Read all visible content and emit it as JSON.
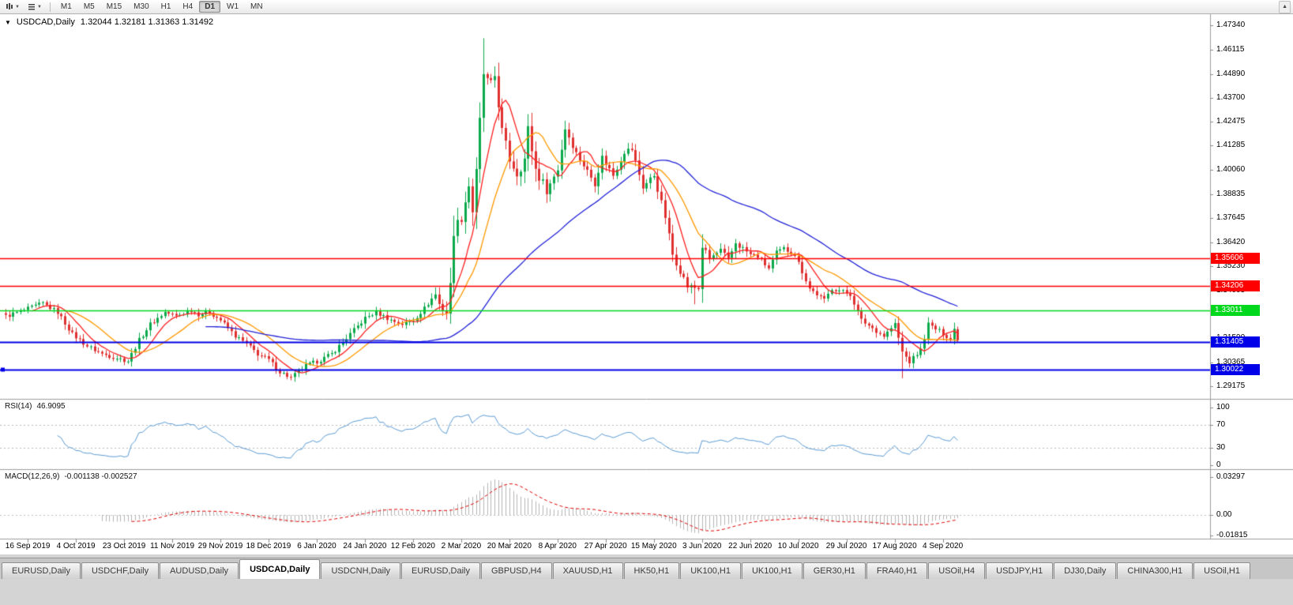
{
  "toolbar": {
    "timeframes": [
      "M1",
      "M5",
      "M15",
      "M30",
      "H1",
      "H4",
      "D1",
      "W1",
      "MN"
    ],
    "active_timeframe": "D1"
  },
  "header": {
    "symbol": "USDCAD,Daily",
    "ohlc_text": "1.32044 1.32181 1.31363 1.31492"
  },
  "colors": {
    "candle_up": "#0ba94c",
    "candle_down": "#e03131",
    "background": "#ffffff",
    "rsi_line": "#5b9bd5",
    "macd_signal": "#e00000",
    "macd_histogram": "#b5b5b5"
  },
  "hlines": [
    {
      "value": 1.35606,
      "label": "1.35606",
      "color": "#ff0000",
      "width": 1.4
    },
    {
      "value": 1.34206,
      "label": "1.34206",
      "color": "#ff0000",
      "width": 1.4
    },
    {
      "value": 1.33011,
      "label": "1.33011",
      "color": "#00d81e",
      "width": 1.6
    },
    {
      "value": 1.31405,
      "label": "1.31405",
      "color": "#0000e8",
      "width": 2
    },
    {
      "value": 1.30022,
      "label": "1.30022",
      "color": "#0000e8",
      "width": 2,
      "handle": true
    }
  ],
  "rsi": {
    "name": "RSI(14)",
    "value": "46.9095",
    "period": 14,
    "color": "#5b9bd5",
    "levels": [
      70,
      30
    ],
    "scale": [
      {
        "label": "100",
        "v": 100
      },
      {
        "label": "70",
        "v": 70
      },
      {
        "label": "30",
        "v": 30
      },
      {
        "label": "0",
        "v": 0
      }
    ]
  },
  "macd": {
    "name": "MACD(12,26,9)",
    "value": "-0.001138 -0.002527",
    "fast": 12,
    "slow": 26,
    "signal": 9,
    "scale": [
      {
        "label": "0.03297",
        "v": 0.03297
      },
      {
        "label": "0.00",
        "v": 0
      },
      {
        "label": "-0.01815",
        "v": -0.01815
      }
    ]
  },
  "tabs": {
    "active_index": 3,
    "items": [
      "EURUSD,Daily",
      "USDCHF,Daily",
      "AUDUSD,Daily",
      "USDCAD,Daily",
      "USDCNH,Daily",
      "EURUSD,Daily",
      "GBPUSD,H4",
      "XAUUSD,H1",
      "HK50,H1",
      "UK100,H1",
      "UK100,H1",
      "GER30,H1",
      "FRA40,H1",
      "USOil,H4",
      "USDJPY,H1",
      "DJ30,Daily",
      "CHINA300,H1",
      "USOil,H1"
    ]
  },
  "chart_data": {
    "type": "candlestick",
    "title": "USDCAD,Daily",
    "symbol": "USDCAD",
    "timeframe": "Daily",
    "last_candle": {
      "open": 1.32044,
      "high": 1.32181,
      "low": 1.31363,
      "close": 1.31492
    },
    "num_candles": 258,
    "y_axis_range": [
      1.2854,
      1.479
    ],
    "y_ticks": [
      "1.47340",
      "1.46115",
      "1.44890",
      "1.43700",
      "1.42475",
      "1.41285",
      "1.40060",
      "1.38835",
      "1.37645",
      "1.36420",
      "1.35230",
      "1.34005",
      "1.32780",
      "1.31590",
      "1.30365",
      "1.29175"
    ],
    "x_labels": [
      "16 Sep 2019",
      "4 Oct 2019",
      "23 Oct 2019",
      "11 Nov 2019",
      "29 Nov 2019",
      "18 Dec 2019",
      "6 Jan 2020",
      "24 Jan 2020",
      "12 Feb 2020",
      "2 Mar 2020",
      "20 Mar 2020",
      "8 Apr 2020",
      "27 Apr 2020",
      "15 May 2020",
      "3 Jun 2020",
      "22 Jun 2020",
      "10 Jul 2020",
      "29 Jul 2020",
      "17 Aug 2020",
      "4 Sep 2020"
    ],
    "extremes": {
      "high": 1.4669,
      "low": 1.2952,
      "low_index": 76,
      "low2": 1.2958,
      "low2_index": 242,
      "low3": 1.333,
      "low3_index": 186
    },
    "moving_averages": [
      {
        "type": "sma",
        "period": 8,
        "color": "#ff2020"
      },
      {
        "type": "sma",
        "period": 17,
        "color": "#ff9900"
      },
      {
        "type": "sma",
        "period": 55,
        "color": "#2222d8"
      }
    ],
    "close_anchors": [
      [
        0,
        1.327
      ],
      [
        5,
        1.33
      ],
      [
        10,
        1.3335
      ],
      [
        14,
        1.329
      ],
      [
        18,
        1.318
      ],
      [
        22,
        1.312
      ],
      [
        26,
        1.308
      ],
      [
        30,
        1.306
      ],
      [
        33,
        1.3045
      ],
      [
        36,
        1.315
      ],
      [
        39,
        1.323
      ],
      [
        43,
        1.329
      ],
      [
        46,
        1.327
      ],
      [
        50,
        1.33
      ],
      [
        52,
        1.328
      ],
      [
        55,
        1.329
      ],
      [
        58,
        1.325
      ],
      [
        62,
        1.317
      ],
      [
        65,
        1.313
      ],
      [
        68,
        1.308
      ],
      [
        71,
        1.305
      ],
      [
        74,
        1.299
      ],
      [
        77,
        1.296
      ],
      [
        78,
        1.2975
      ],
      [
        81,
        1.302
      ],
      [
        85,
        1.305
      ],
      [
        88,
        1.308
      ],
      [
        91,
        1.314
      ],
      [
        94,
        1.32
      ],
      [
        97,
        1.326
      ],
      [
        100,
        1.329
      ],
      [
        104,
        1.325
      ],
      [
        107,
        1.323
      ],
      [
        110,
        1.325
      ],
      [
        113,
        1.331
      ],
      [
        116,
        1.338
      ],
      [
        117,
        1.333
      ],
      [
        119,
        1.329
      ],
      [
        120,
        1.342
      ],
      [
        121,
        1.37
      ],
      [
        123,
        1.377
      ],
      [
        125,
        1.393
      ],
      [
        126,
        1.38
      ],
      [
        127,
        1.399
      ],
      [
        128,
        1.425
      ],
      [
        129,
        1.449
      ],
      [
        130,
        1.445
      ],
      [
        131,
        1.443
      ],
      [
        132,
        1.448
      ],
      [
        134,
        1.42
      ],
      [
        136,
        1.406
      ],
      [
        138,
        1.399
      ],
      [
        140,
        1.406
      ],
      [
        141,
        1.421
      ],
      [
        143,
        1.401
      ],
      [
        146,
        1.39
      ],
      [
        149,
        1.401
      ],
      [
        151,
        1.4215
      ],
      [
        154,
        1.409
      ],
      [
        156,
        1.403
      ],
      [
        159,
        1.394
      ],
      [
        161,
        1.407
      ],
      [
        164,
        1.398
      ],
      [
        167,
        1.41
      ],
      [
        169,
        1.411
      ],
      [
        172,
        1.392
      ],
      [
        175,
        1.398
      ],
      [
        178,
        1.377
      ],
      [
        180,
        1.358
      ],
      [
        182,
        1.35
      ],
      [
        184,
        1.342
      ],
      [
        187,
        1.341
      ],
      [
        188,
        1.362
      ],
      [
        190,
        1.356
      ],
      [
        193,
        1.36
      ],
      [
        195,
        1.355
      ],
      [
        197,
        1.364
      ],
      [
        201,
        1.358
      ],
      [
        203,
        1.357
      ],
      [
        206,
        1.351
      ],
      [
        208,
        1.359
      ],
      [
        210,
        1.361
      ],
      [
        213,
        1.358
      ],
      [
        217,
        1.341
      ],
      [
        221,
        1.335
      ],
      [
        223,
        1.341
      ],
      [
        225,
        1.34
      ],
      [
        228,
        1.338
      ],
      [
        231,
        1.325
      ],
      [
        234,
        1.321
      ],
      [
        237,
        1.317
      ],
      [
        240,
        1.323
      ],
      [
        242,
        1.309
      ],
      [
        244,
        1.304
      ],
      [
        245,
        1.306
      ],
      [
        247,
        1.31
      ],
      [
        249,
        1.323
      ],
      [
        251,
        1.3205
      ],
      [
        253,
        1.3185
      ],
      [
        255,
        1.3155
      ],
      [
        256,
        1.3205
      ],
      [
        257,
        1.31492
      ]
    ]
  }
}
